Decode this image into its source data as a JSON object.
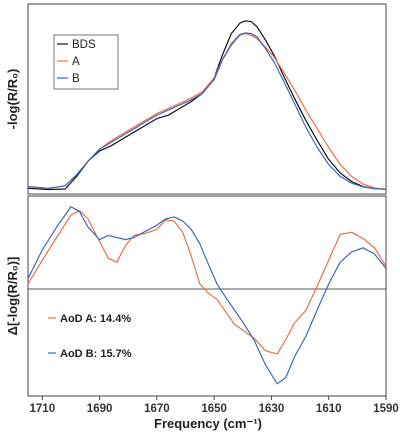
{
  "chart_data": [
    {
      "type": "line",
      "panel": "top",
      "ylabel": "-log(R/R₀)",
      "xlim": [
        1715,
        1590
      ],
      "ylim": [
        0,
        1.0
      ],
      "grid": false,
      "legend_position": "top-left",
      "series": [
        {
          "name": "BDS",
          "color": "#111111",
          "x": [
            1715,
            1708,
            1702,
            1698,
            1694,
            1690,
            1686,
            1682,
            1678,
            1674,
            1670,
            1666,
            1662,
            1658,
            1654,
            1650,
            1647,
            1644,
            1641,
            1639,
            1637,
            1635,
            1632,
            1629,
            1626,
            1622,
            1618,
            1614,
            1610,
            1606,
            1602,
            1598,
            1594,
            1590
          ],
          "y": [
            0.01,
            0.003,
            0.006,
            0.08,
            0.17,
            0.23,
            0.26,
            0.3,
            0.34,
            0.38,
            0.42,
            0.44,
            0.48,
            0.52,
            0.57,
            0.66,
            0.8,
            0.92,
            0.982,
            0.995,
            0.99,
            0.96,
            0.88,
            0.79,
            0.68,
            0.54,
            0.41,
            0.29,
            0.18,
            0.1,
            0.05,
            0.02,
            0.008,
            0.004
          ]
        },
        {
          "name": "A",
          "color": "#e8704a",
          "x": [
            1715,
            1708,
            1702,
            1698,
            1694,
            1690,
            1686,
            1682,
            1678,
            1674,
            1670,
            1666,
            1662,
            1658,
            1654,
            1650,
            1647,
            1644,
            1641,
            1639,
            1637,
            1635,
            1632,
            1629,
            1626,
            1622,
            1618,
            1614,
            1610,
            1606,
            1602,
            1598,
            1594,
            1590
          ],
          "y": [
            0.02,
            0.01,
            0.025,
            0.09,
            0.17,
            0.24,
            0.29,
            0.33,
            0.37,
            0.41,
            0.45,
            0.48,
            0.51,
            0.54,
            0.58,
            0.66,
            0.77,
            0.85,
            0.91,
            0.92,
            0.91,
            0.89,
            0.84,
            0.78,
            0.7,
            0.59,
            0.47,
            0.36,
            0.25,
            0.15,
            0.08,
            0.035,
            0.012,
            0.005
          ]
        },
        {
          "name": "B",
          "color": "#3f68b8",
          "x": [
            1715,
            1708,
            1702,
            1698,
            1694,
            1690,
            1686,
            1682,
            1678,
            1674,
            1670,
            1666,
            1662,
            1658,
            1654,
            1650,
            1647,
            1644,
            1641,
            1639,
            1637,
            1635,
            1632,
            1629,
            1626,
            1622,
            1618,
            1614,
            1610,
            1606,
            1602,
            1598,
            1594,
            1590
          ],
          "y": [
            0.02,
            0.01,
            0.025,
            0.09,
            0.17,
            0.24,
            0.28,
            0.32,
            0.36,
            0.4,
            0.44,
            0.47,
            0.5,
            0.53,
            0.57,
            0.65,
            0.77,
            0.86,
            0.915,
            0.925,
            0.92,
            0.9,
            0.83,
            0.75,
            0.65,
            0.51,
            0.37,
            0.25,
            0.15,
            0.08,
            0.04,
            0.018,
            0.008,
            0.004
          ]
        }
      ]
    },
    {
      "type": "line",
      "panel": "bottom",
      "ylabel": "Δ[-log(R/R₀)]",
      "xlabel": "Frequency (cm⁻¹)",
      "xlim": [
        1715,
        1590
      ],
      "ylim": [
        -1.0,
        1.0
      ],
      "xticks": [
        1710,
        1690,
        1670,
        1650,
        1630,
        1610,
        1590
      ],
      "zero_line": true,
      "grid": false,
      "series": [
        {
          "name": "AoD A: 14.4%",
          "color": "#e8704a",
          "x": [
            1715,
            1710,
            1705,
            1700,
            1697,
            1694,
            1690,
            1687,
            1684,
            1681,
            1678,
            1674,
            1670,
            1667,
            1664,
            1661,
            1658,
            1655,
            1652,
            1649,
            1646,
            1643,
            1640,
            1636,
            1632,
            1628,
            1625,
            1622,
            1618,
            1614,
            1610,
            1606,
            1602,
            1598,
            1594,
            1590
          ],
          "y": [
            0.05,
            0.28,
            0.5,
            0.72,
            0.76,
            0.68,
            0.46,
            0.3,
            0.26,
            0.42,
            0.52,
            0.54,
            0.58,
            0.67,
            0.66,
            0.55,
            0.32,
            0.05,
            -0.04,
            -0.1,
            -0.22,
            -0.34,
            -0.4,
            -0.48,
            -0.6,
            -0.63,
            -0.49,
            -0.33,
            -0.21,
            0.03,
            0.28,
            0.53,
            0.55,
            0.49,
            0.4,
            0.22
          ]
        },
        {
          "name": "AoD B: 15.7%",
          "color": "#3f68b8",
          "x": [
            1715,
            1710,
            1705,
            1700,
            1697,
            1694,
            1690,
            1687,
            1684,
            1681,
            1678,
            1674,
            1670,
            1667,
            1664,
            1661,
            1658,
            1655,
            1652,
            1649,
            1646,
            1643,
            1640,
            1636,
            1632,
            1628,
            1625,
            1622,
            1618,
            1614,
            1610,
            1606,
            1602,
            1598,
            1594,
            1590
          ],
          "y": [
            0.1,
            0.38,
            0.6,
            0.8,
            0.75,
            0.6,
            0.48,
            0.52,
            0.5,
            0.48,
            0.5,
            0.56,
            0.62,
            0.68,
            0.7,
            0.66,
            0.58,
            0.44,
            0.24,
            0.05,
            -0.08,
            -0.2,
            -0.32,
            -0.5,
            -0.74,
            -0.92,
            -0.86,
            -0.66,
            -0.46,
            -0.2,
            0.05,
            0.26,
            0.36,
            0.4,
            0.34,
            0.2
          ]
        }
      ]
    }
  ]
}
